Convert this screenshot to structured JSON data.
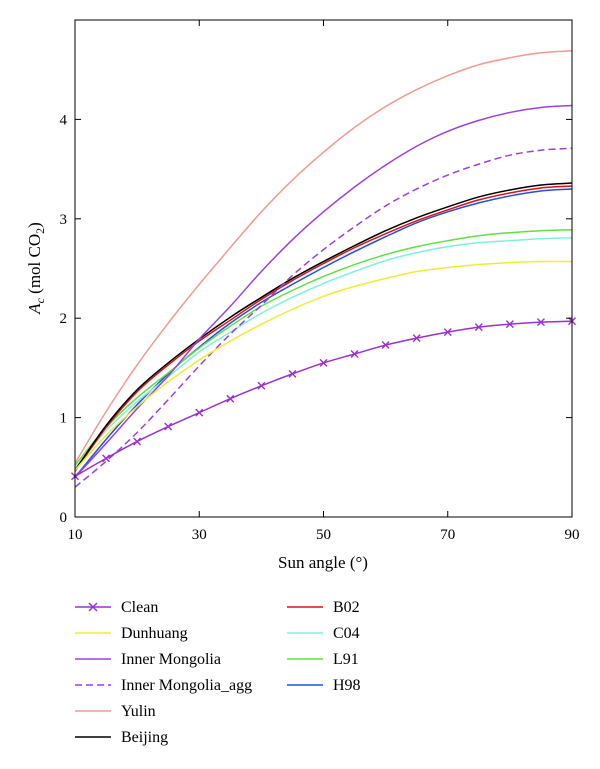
{
  "chart_data": {
    "type": "line",
    "title": "",
    "xlabel": "Sun angle (°)",
    "ylabel": {
      "main": "A",
      "sub": "c",
      "unit_open": " (mol CO",
      "unit_sub": "2",
      "unit_close": ")"
    },
    "xlim": [
      10,
      90
    ],
    "ylim": [
      0,
      5
    ],
    "xticks": [
      10,
      30,
      50,
      70,
      90
    ],
    "yticks": [
      0,
      1,
      2,
      3,
      4
    ],
    "grid": false,
    "legend_position": "bottom",
    "x": [
      10,
      15,
      20,
      25,
      30,
      35,
      40,
      45,
      50,
      55,
      60,
      65,
      70,
      75,
      80,
      85,
      90
    ],
    "series": [
      {
        "name": "Clean",
        "color": "#9b30d0",
        "dash": "solid",
        "marker": "x",
        "values": [
          0.41,
          0.59,
          0.76,
          0.91,
          1.05,
          1.19,
          1.32,
          1.44,
          1.55,
          1.64,
          1.73,
          1.8,
          1.86,
          1.91,
          1.94,
          1.96,
          1.97
        ]
      },
      {
        "name": "Dunhuang",
        "color": "#eded30",
        "dash": "solid",
        "values": [
          0.47,
          0.82,
          1.11,
          1.36,
          1.58,
          1.77,
          1.94,
          2.09,
          2.22,
          2.32,
          2.4,
          2.47,
          2.51,
          2.54,
          2.56,
          2.57,
          2.57
        ]
      },
      {
        "name": "Inner Mongolia",
        "color": "#9a40e0",
        "dash": "solid",
        "values": [
          0.4,
          0.74,
          1.09,
          1.42,
          1.79,
          2.12,
          2.47,
          2.79,
          3.07,
          3.32,
          3.54,
          3.73,
          3.88,
          3.99,
          4.07,
          4.12,
          4.14
        ]
      },
      {
        "name": "Inner Mongolia_agg",
        "color": "#9a40e0",
        "dash": "dashed",
        "values": [
          0.3,
          0.56,
          0.85,
          1.18,
          1.52,
          1.84,
          2.13,
          2.43,
          2.69,
          2.92,
          3.13,
          3.3,
          3.44,
          3.55,
          3.64,
          3.69,
          3.71
        ]
      },
      {
        "name": "Yulin",
        "color": "#f09a90",
        "dash": "solid",
        "values": [
          0.54,
          1.06,
          1.53,
          1.95,
          2.34,
          2.71,
          3.07,
          3.39,
          3.67,
          3.92,
          4.13,
          4.3,
          4.44,
          4.55,
          4.62,
          4.67,
          4.69
        ]
      },
      {
        "name": "Beijing",
        "color": "#000000",
        "dash": "solid",
        "values": [
          0.47,
          0.92,
          1.28,
          1.55,
          1.79,
          2.01,
          2.21,
          2.4,
          2.57,
          2.73,
          2.88,
          3.01,
          3.12,
          3.22,
          3.29,
          3.34,
          3.36
        ]
      },
      {
        "name": "B02",
        "color": "#e01010",
        "dash": "solid",
        "values": [
          0.46,
          0.9,
          1.26,
          1.53,
          1.77,
          1.98,
          2.19,
          2.38,
          2.55,
          2.71,
          2.85,
          2.98,
          3.09,
          3.19,
          3.26,
          3.31,
          3.33
        ]
      },
      {
        "name": "C04",
        "color": "#7ff0e0",
        "dash": "solid",
        "values": [
          0.49,
          0.87,
          1.16,
          1.41,
          1.66,
          1.86,
          2.05,
          2.21,
          2.35,
          2.47,
          2.58,
          2.66,
          2.72,
          2.76,
          2.78,
          2.8,
          2.81
        ]
      },
      {
        "name": "L91",
        "color": "#60e040",
        "dash": "solid",
        "values": [
          0.52,
          0.9,
          1.2,
          1.45,
          1.7,
          1.92,
          2.12,
          2.28,
          2.42,
          2.54,
          2.64,
          2.72,
          2.78,
          2.83,
          2.86,
          2.88,
          2.89
        ]
      },
      {
        "name": "H98",
        "color": "#2050e0",
        "dash": "solid",
        "values": [
          0.4,
          0.78,
          1.13,
          1.44,
          1.71,
          1.95,
          2.16,
          2.34,
          2.51,
          2.67,
          2.82,
          2.96,
          3.07,
          3.16,
          3.23,
          3.28,
          3.3
        ]
      }
    ]
  }
}
